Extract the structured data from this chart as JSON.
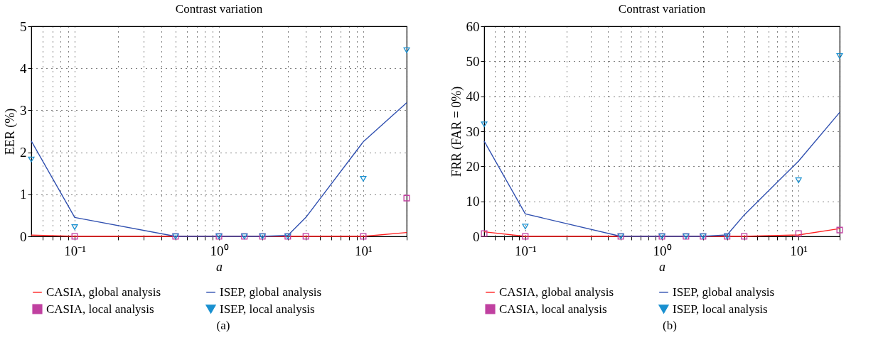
{
  "chart_data": [
    {
      "type": "line",
      "title": "Contrast variation",
      "xlabel": "a",
      "ylabel": "EER (%)",
      "x": [
        0.05,
        0.1,
        0.5,
        1,
        1.5,
        2,
        3,
        4,
        10,
        20
      ],
      "series": [
        {
          "name": "CASIA, global analysis",
          "color": "#ff2020",
          "values": [
            0.03,
            0,
            0,
            0,
            0,
            0,
            0,
            0,
            0,
            0.09
          ]
        },
        {
          "name": "ISEP, global analysis",
          "color": "#3050b0",
          "values": [
            2.27,
            0.45,
            0,
            0,
            0,
            0,
            0.02,
            0.45,
            2.25,
            3.18
          ]
        },
        {
          "name": "CASIA, local analysis",
          "type": "scatter",
          "marker": "square",
          "color": "#c040a0",
          "values": [
            null,
            0,
            0,
            0,
            0,
            0,
            0,
            0,
            0,
            0.91
          ]
        },
        {
          "name": "ISEP, local analysis",
          "type": "scatter",
          "marker": "triangle",
          "color": "#1a90d0",
          "values": [
            1.83,
            0.22,
            0,
            0,
            0,
            0,
            0,
            null,
            1.37,
            4.43
          ]
        }
      ],
      "log": "x",
      "xlim": [
        0.05,
        20
      ],
      "ylim": [
        0,
        5
      ],
      "yticks": [
        0,
        1,
        2,
        3,
        4,
        5
      ],
      "xticks": [
        {
          "value": 0.06,
          "label": null
        },
        {
          "value": 0.07,
          "label": null
        },
        {
          "value": 0.08,
          "label": null
        },
        {
          "value": 0.09,
          "label": null
        },
        {
          "value": 0.1,
          "label": "10⁻¹"
        },
        {
          "value": 0.2,
          "label": null
        },
        {
          "value": 0.3,
          "label": null
        },
        {
          "value": 0.4,
          "label": null
        },
        {
          "value": 0.5,
          "label": null
        },
        {
          "value": 0.6,
          "label": null
        },
        {
          "value": 0.7,
          "label": null
        },
        {
          "value": 0.8,
          "label": null
        },
        {
          "value": 0.9,
          "label": null
        },
        {
          "value": 1,
          "label": "10⁰"
        },
        {
          "value": 2,
          "label": null
        },
        {
          "value": 3,
          "label": null
        },
        {
          "value": 4,
          "label": null
        },
        {
          "value": 5,
          "label": null
        },
        {
          "value": 6,
          "label": null
        },
        {
          "value": 7,
          "label": null
        },
        {
          "value": 8,
          "label": null
        },
        {
          "value": 9,
          "label": null
        },
        {
          "value": 10,
          "label": "10¹"
        },
        {
          "value": 20,
          "label": null
        }
      ],
      "grid": true,
      "legend": "bottom",
      "line_style": "solid",
      "annotations": [
        "(a)"
      ]
    },
    {
      "type": "line",
      "title": "Contrast variation",
      "xlabel": "a",
      "ylabel": "FRR (FAR = 0%)",
      "x": [
        0.05,
        0.1,
        0.5,
        1,
        1.5,
        2,
        3,
        4,
        10,
        20
      ],
      "series": [
        {
          "name": "CASIA, global analysis",
          "color": "#ff2020",
          "values": [
            1.3,
            0,
            0,
            0,
            0,
            0,
            0,
            0,
            0.4,
            2.2
          ]
        },
        {
          "name": "ISEP, global analysis",
          "color": "#3050b0",
          "values": [
            27.2,
            6.4,
            0,
            0,
            0,
            0,
            0.4,
            6.1,
            21.5,
            35.4
          ]
        },
        {
          "name": "CASIA, local analysis",
          "type": "scatter",
          "marker": "square",
          "color": "#c040a0",
          "values": [
            0.8,
            0,
            0,
            0,
            0,
            0,
            0,
            0,
            0.8,
            1.8
          ]
        },
        {
          "name": "ISEP, local analysis",
          "type": "scatter",
          "marker": "triangle",
          "color": "#1a90d0",
          "values": [
            32,
            2.8,
            0,
            0,
            0,
            0,
            0,
            null,
            16,
            51.5
          ]
        }
      ],
      "log": "x",
      "xlim": [
        0.05,
        20
      ],
      "ylim": [
        0,
        60
      ],
      "yticks": [
        0,
        10,
        20,
        30,
        40,
        50,
        60
      ],
      "xticks": [
        {
          "value": 0.06,
          "label": null
        },
        {
          "value": 0.07,
          "label": null
        },
        {
          "value": 0.08,
          "label": null
        },
        {
          "value": 0.09,
          "label": null
        },
        {
          "value": 0.1,
          "label": "10⁻¹"
        },
        {
          "value": 0.2,
          "label": null
        },
        {
          "value": 0.3,
          "label": null
        },
        {
          "value": 0.4,
          "label": null
        },
        {
          "value": 0.5,
          "label": null
        },
        {
          "value": 0.6,
          "label": null
        },
        {
          "value": 0.7,
          "label": null
        },
        {
          "value": 0.8,
          "label": null
        },
        {
          "value": 0.9,
          "label": null
        },
        {
          "value": 1,
          "label": "10⁰"
        },
        {
          "value": 2,
          "label": null
        },
        {
          "value": 3,
          "label": null
        },
        {
          "value": 4,
          "label": null
        },
        {
          "value": 5,
          "label": null
        },
        {
          "value": 6,
          "label": null
        },
        {
          "value": 7,
          "label": null
        },
        {
          "value": 8,
          "label": null
        },
        {
          "value": 9,
          "label": null
        },
        {
          "value": 10,
          "label": "10¹"
        },
        {
          "value": 20,
          "label": null
        }
      ],
      "grid": true,
      "legend": "bottom",
      "line_style": "solid",
      "annotations": [
        "(b)"
      ]
    }
  ]
}
